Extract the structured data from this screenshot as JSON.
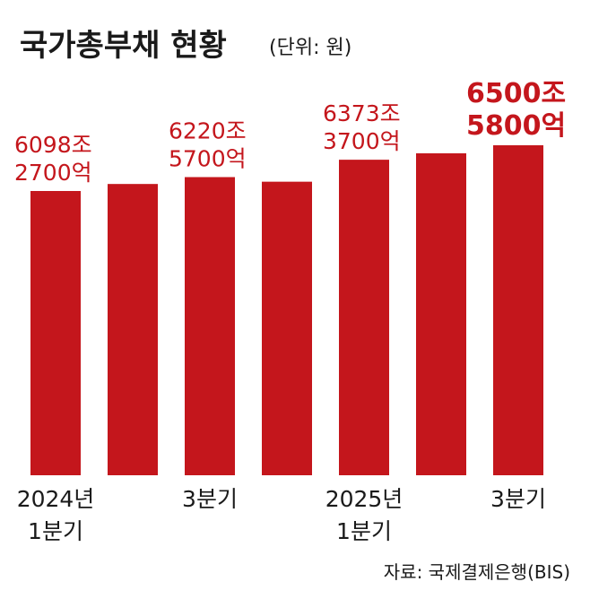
{
  "chart_data": {
    "type": "bar",
    "title": "국가총부채 현황",
    "unit": "(단위: 원)",
    "categories": [
      [
        "2024년",
        "1분기"
      ],
      [
        "",
        ""
      ],
      [
        "3분기",
        ""
      ],
      [
        "",
        ""
      ],
      [
        "2025년",
        "1분기"
      ],
      [
        "",
        ""
      ],
      [
        "3분기",
        ""
      ]
    ],
    "values": [
      6098.27,
      6160,
      6220.57,
      6180,
      6373.37,
      6430,
      6500.58
    ],
    "data_labels": [
      [
        "6098조",
        "2700억"
      ],
      null,
      [
        "6220조",
        "5700억"
      ],
      null,
      [
        "6373조",
        "3700억"
      ],
      null,
      [
        "6500조",
        "5800억"
      ]
    ],
    "value_unit": "조 원",
    "source": "자료: 국제결제은행(BIS)",
    "colors": {
      "bar": "#c4161c",
      "text": "#1a1a1a"
    }
  }
}
